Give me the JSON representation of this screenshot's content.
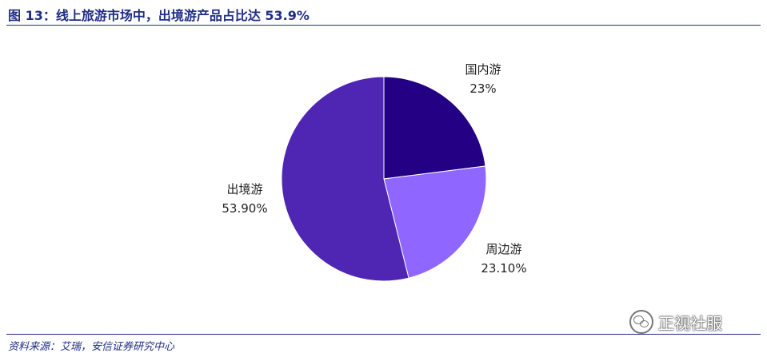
{
  "header": {
    "title": "图 13：线上旅游市场中，出境游产品占比达 53.9%"
  },
  "footer": {
    "source": "资料来源：艾瑞，安信证券研究中心"
  },
  "watermark": {
    "text": "正视社服",
    "icon": "wechat-icon"
  },
  "chart_data": {
    "type": "pie",
    "slices": [
      {
        "name": "国内游",
        "value_label": "23%",
        "value": 23.0,
        "color": "#240085"
      },
      {
        "name": "周边游",
        "value_label": "23.10%",
        "value": 23.1,
        "color": "#8f66ff"
      },
      {
        "name": "出境游",
        "value_label": "53.90%",
        "value": 53.9,
        "color": "#4f26b3"
      }
    ]
  }
}
